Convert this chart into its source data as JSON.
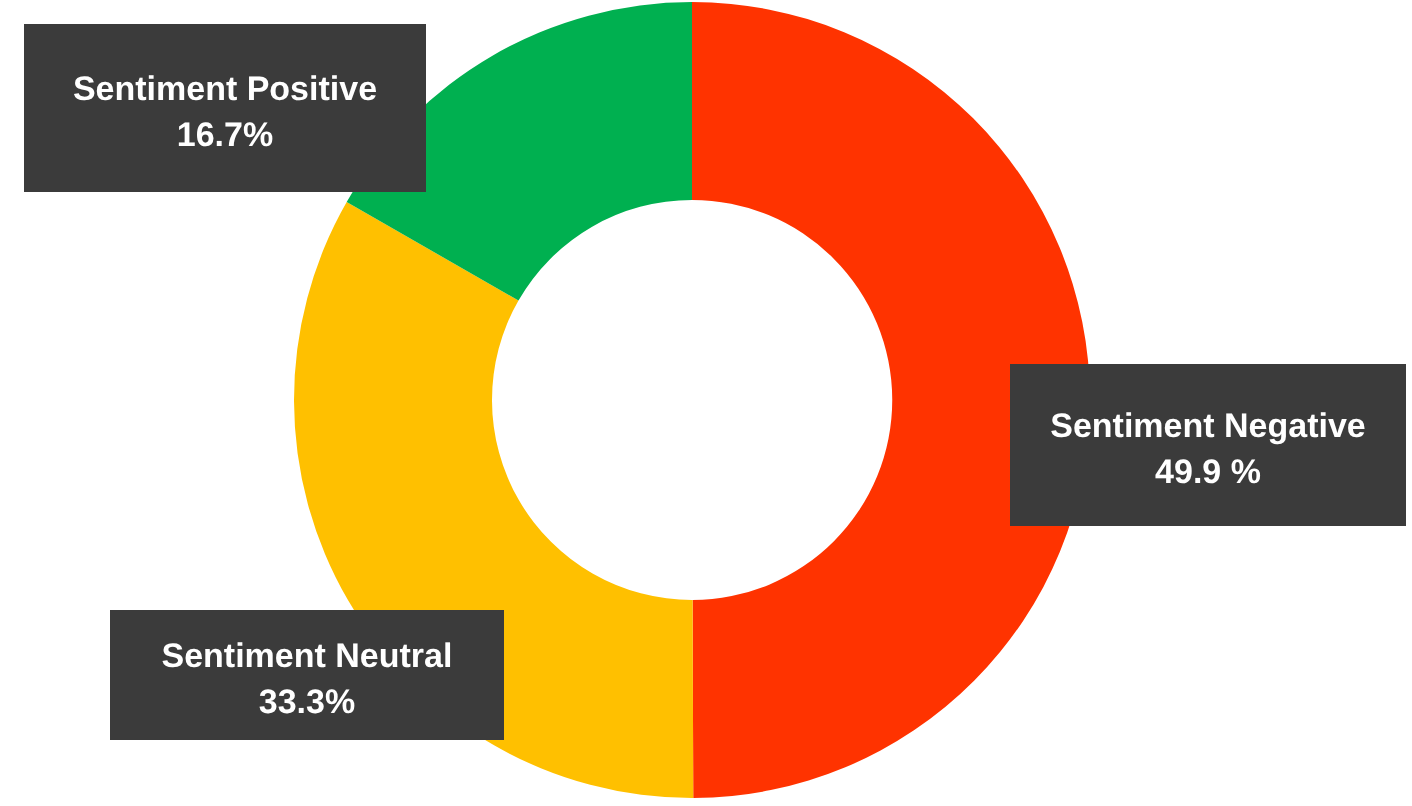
{
  "chart_data": {
    "type": "donut",
    "categories": [
      "Sentiment Negative",
      "Sentiment Neutral",
      "Sentiment Positive"
    ],
    "values": [
      49.9,
      33.3,
      16.7
    ],
    "value_labels": [
      "49.9 %",
      "33.3%",
      "16.7%"
    ],
    "colors": [
      "#ff3300",
      "#ffc000",
      "#00b050"
    ]
  }
}
